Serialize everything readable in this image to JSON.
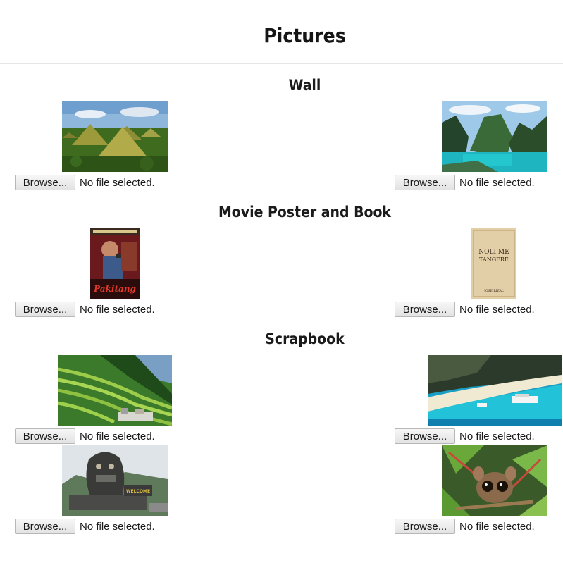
{
  "page": {
    "title": "Pictures"
  },
  "sections": [
    {
      "title": "Wall"
    },
    {
      "title": "Movie Poster and Book"
    },
    {
      "title": "Scrapbook"
    }
  ],
  "file_input": {
    "browse_label": "Browse...",
    "status_text": "No file selected."
  },
  "images": {
    "chocolate_hills": {
      "icon": "landscape-photo"
    },
    "lagoon": {
      "icon": "landscape-photo"
    },
    "movie_poster": {
      "icon": "poster-image",
      "poster_text": "Pakitang"
    },
    "book_cover": {
      "icon": "book-image",
      "title_line1": "NOLI ME",
      "title_line2": "TANGERE",
      "author": "JOSE RIZAL"
    },
    "rice_terraces": {
      "icon": "landscape-photo"
    },
    "beach": {
      "icon": "landscape-photo"
    },
    "statue": {
      "icon": "photo",
      "sign_text": "WELCOME"
    },
    "tarsier": {
      "icon": "photo"
    }
  }
}
